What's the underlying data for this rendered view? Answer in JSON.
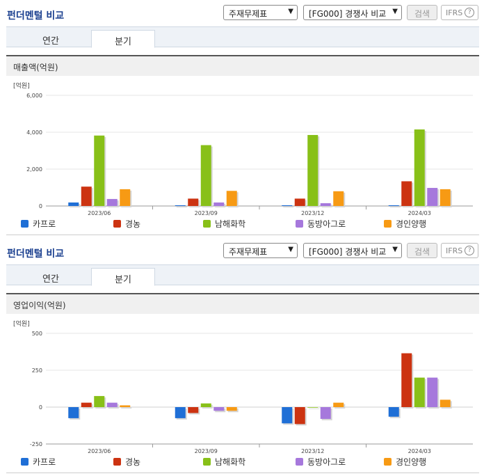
{
  "sections": [
    {
      "header": {
        "title": "펀더멘털 비교",
        "select_report": "주재무제표",
        "select_compare": "[FG000] 경쟁사 비교",
        "search_label": "검색",
        "ifrs_label": "IFRS",
        "help_glyph": "?"
      },
      "tabs": [
        {
          "label": "연간"
        },
        {
          "label": "분기"
        }
      ],
      "active_tab": "분기",
      "panel_title": "매출액(억원)"
    },
    {
      "header": {
        "title": "펀더멘털 비교",
        "select_report": "주재무제표",
        "select_compare": "[FG000] 경쟁사 비교",
        "search_label": "검색",
        "ifrs_label": "IFRS",
        "help_glyph": "?"
      },
      "tabs": [
        {
          "label": "연간"
        },
        {
          "label": "분기"
        }
      ],
      "active_tab": "분기",
      "panel_title": "영업이익(억원)"
    }
  ],
  "chart_data": [
    {
      "type": "bar",
      "unit_label": "[억원]",
      "categories": [
        "2023/06",
        "2023/09",
        "2023/12",
        "2024/03"
      ],
      "ylim": [
        0,
        6000
      ],
      "yticks": [
        0,
        2000,
        4000,
        6000
      ],
      "ytick_labels": [
        "0",
        "2,000",
        "4,000",
        "6,000"
      ],
      "grid": true,
      "legend_position": "bottom",
      "series": [
        {
          "name": "카프로",
          "color": "#1f6fd6",
          "values": [
            190,
            40,
            40,
            40
          ]
        },
        {
          "name": "경농",
          "color": "#cc3311",
          "values": [
            1050,
            400,
            400,
            1340
          ]
        },
        {
          "name": "남해화학",
          "color": "#88c018",
          "values": [
            3820,
            3300,
            3850,
            4150
          ]
        },
        {
          "name": "동방아그로",
          "color": "#a678dc",
          "values": [
            380,
            190,
            150,
            980
          ]
        },
        {
          "name": "경인양행",
          "color": "#f79a14",
          "values": [
            910,
            820,
            800,
            910
          ]
        }
      ]
    },
    {
      "type": "bar",
      "unit_label": "[억원]",
      "categories": [
        "2023/06",
        "2023/09",
        "2023/12",
        "2024/03"
      ],
      "ylim": [
        -250,
        500
      ],
      "yticks": [
        -250,
        0,
        250,
        500
      ],
      "ytick_labels": [
        "-250",
        "0",
        "250",
        "500"
      ],
      "grid": true,
      "legend_position": "bottom",
      "series": [
        {
          "name": "카프로",
          "color": "#1f6fd6",
          "values": [
            -75,
            -75,
            -110,
            -65
          ]
        },
        {
          "name": "경농",
          "color": "#cc3311",
          "values": [
            30,
            -40,
            -115,
            365
          ]
        },
        {
          "name": "남해화학",
          "color": "#88c018",
          "values": [
            75,
            25,
            0,
            200
          ]
        },
        {
          "name": "동방아그로",
          "color": "#a678dc",
          "values": [
            30,
            -25,
            -80,
            200
          ]
        },
        {
          "name": "경인양행",
          "color": "#f79a14",
          "values": [
            12,
            -25,
            30,
            50
          ]
        }
      ]
    }
  ]
}
